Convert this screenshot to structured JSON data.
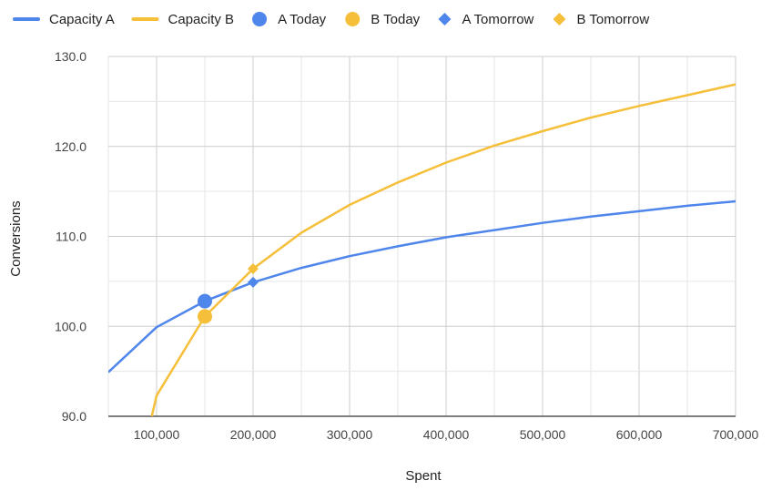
{
  "chart_data": {
    "type": "line",
    "xlabel": "Spent",
    "ylabel": "Conversions",
    "xlim": [
      50000,
      700000
    ],
    "ylim": [
      90,
      130
    ],
    "x_ticks": [
      100000,
      200000,
      300000,
      400000,
      500000,
      600000,
      700000
    ],
    "x_tick_labels": [
      "100,000",
      "200,000",
      "300,000",
      "400,000",
      "500,000",
      "600,000",
      "700,000"
    ],
    "y_ticks": [
      90,
      100,
      110,
      120,
      130
    ],
    "y_tick_labels": [
      "90.0",
      "100.0",
      "110.0",
      "120.0",
      "130.0"
    ],
    "grid": true,
    "legend_position": "top",
    "series": [
      {
        "name": "Capacity A",
        "kind": "line",
        "color": "#4f86ec",
        "points": [
          [
            50000,
            94.9
          ],
          [
            100000,
            99.9
          ],
          [
            150000,
            102.8
          ],
          [
            200000,
            104.9
          ],
          [
            250000,
            106.5
          ],
          [
            300000,
            107.8
          ],
          [
            350000,
            108.9
          ],
          [
            400000,
            109.9
          ],
          [
            450000,
            110.7
          ],
          [
            500000,
            111.5
          ],
          [
            550000,
            112.2
          ],
          [
            600000,
            112.8
          ],
          [
            650000,
            113.4
          ],
          [
            700000,
            113.9
          ]
        ]
      },
      {
        "name": "Capacity B",
        "kind": "line",
        "color": "#f6bf3a",
        "points": [
          [
            95000,
            90.0
          ],
          [
            100000,
            92.3
          ],
          [
            150000,
            101.1
          ],
          [
            200000,
            106.4
          ],
          [
            250000,
            110.4
          ],
          [
            300000,
            113.5
          ],
          [
            350000,
            116.0
          ],
          [
            400000,
            118.2
          ],
          [
            450000,
            120.1
          ],
          [
            500000,
            121.7
          ],
          [
            550000,
            123.2
          ],
          [
            600000,
            124.5
          ],
          [
            650000,
            125.7
          ],
          [
            700000,
            126.9
          ]
        ]
      },
      {
        "name": "A Today",
        "kind": "circle",
        "color": "#4f86ec",
        "points": [
          [
            150000,
            102.8
          ]
        ]
      },
      {
        "name": "B Today",
        "kind": "circle",
        "color": "#f6bf3a",
        "points": [
          [
            150000,
            101.1
          ]
        ]
      },
      {
        "name": "A Tomorrow",
        "kind": "diamond",
        "color": "#4f86ec",
        "points": [
          [
            200000,
            104.9
          ]
        ]
      },
      {
        "name": "B Tomorrow",
        "kind": "diamond",
        "color": "#f6bf3a",
        "points": [
          [
            200000,
            106.4
          ]
        ]
      }
    ]
  }
}
